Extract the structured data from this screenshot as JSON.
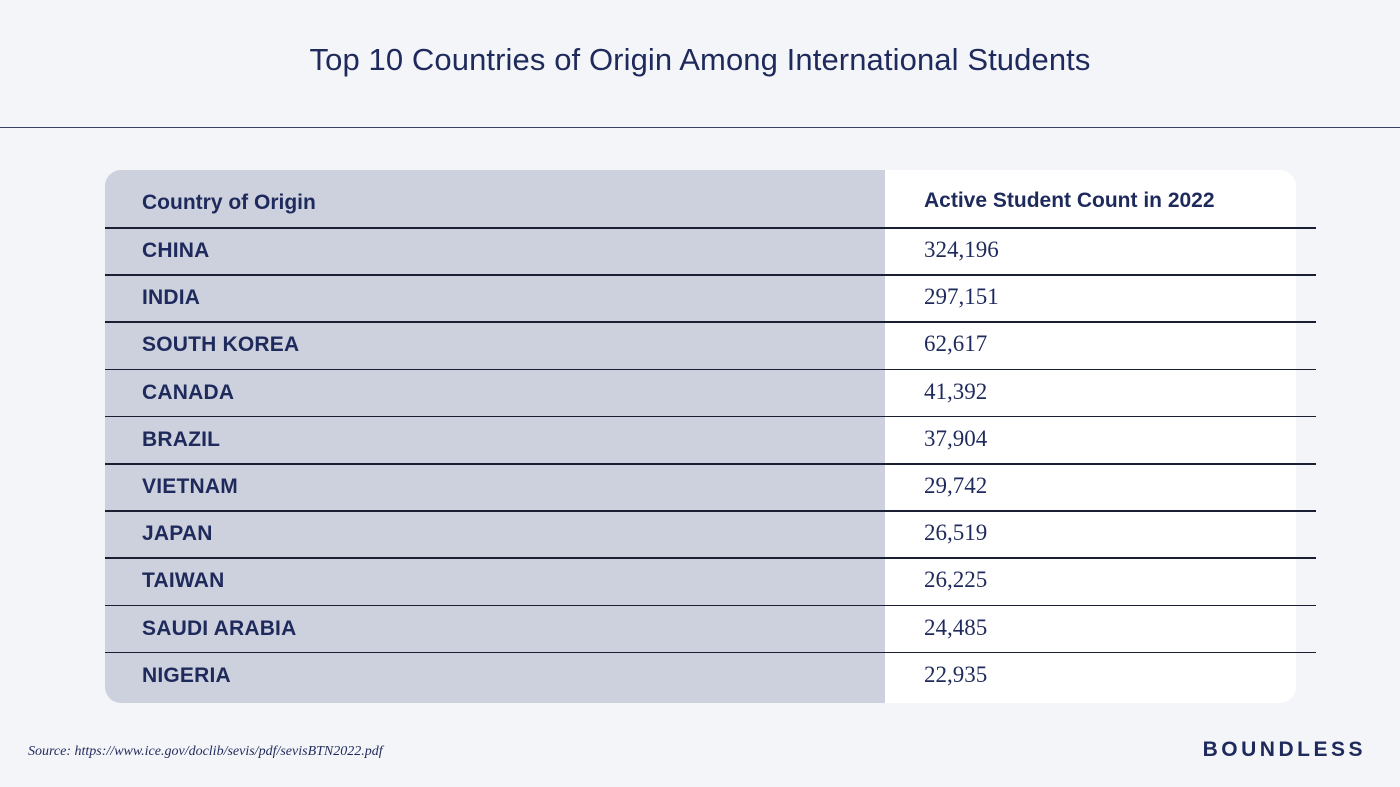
{
  "chart_data": {
    "type": "table",
    "title": "Top 10 Countries of Origin Among International Students",
    "columns": [
      "Country of Origin",
      "Active Student Count in 2022"
    ],
    "rows": [
      {
        "country": "CHINA",
        "value": "324,196"
      },
      {
        "country": "INDIA",
        "value": "297,151"
      },
      {
        "country": "SOUTH KOREA",
        "value": "62,617"
      },
      {
        "country": "CANADA",
        "value": "41,392"
      },
      {
        "country": "BRAZIL",
        "value": "37,904"
      },
      {
        "country": "VIETNAM",
        "value": "29,742"
      },
      {
        "country": "JAPAN",
        "value": "26,519"
      },
      {
        "country": "TAIWAN",
        "value": "26,225"
      },
      {
        "country": "SAUDI ARABIA",
        "value": "24,485"
      },
      {
        "country": "NIGERIA",
        "value": "22,935"
      }
    ]
  },
  "source": "Source: https://www.ice.gov/doclib/sevis/pdf/sevisBTN2022.pdf",
  "brand": "BOUNDLESS",
  "colors": {
    "text": "#1f2a5c",
    "left_column": "#cdd1dd",
    "right_column": "#ffffff",
    "background": "#f4f5f8"
  }
}
